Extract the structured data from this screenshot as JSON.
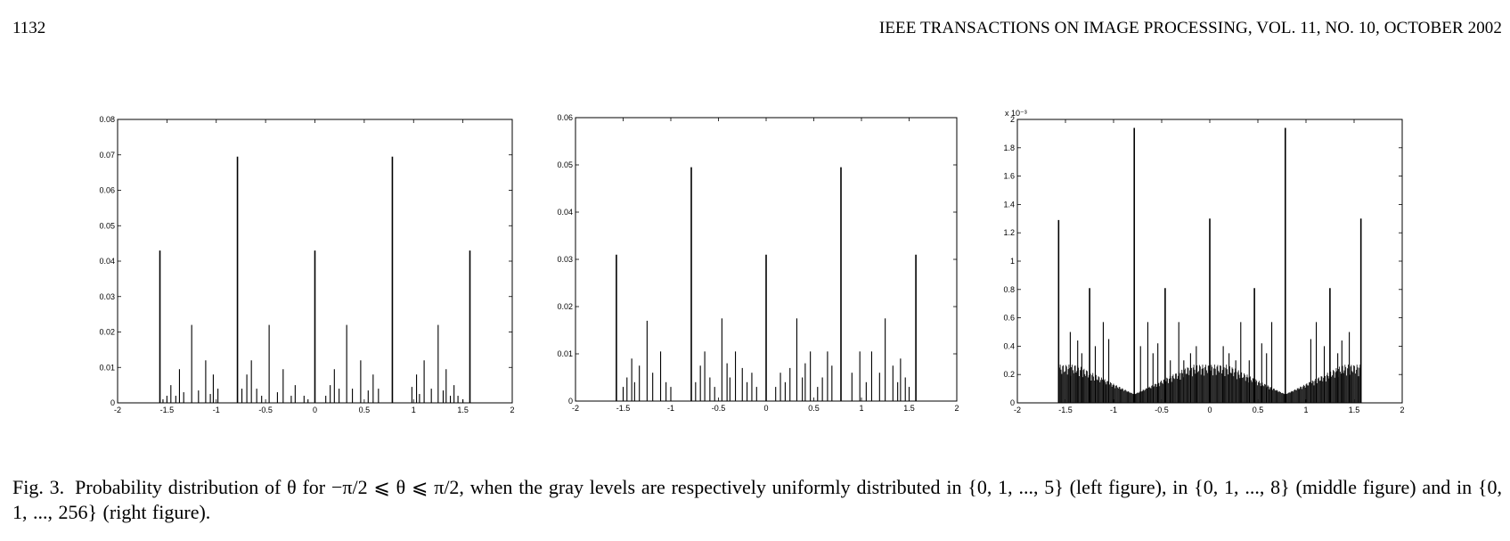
{
  "header": {
    "page_number": "1132",
    "journal": "IEEE TRANSACTIONS ON IMAGE PROCESSING, VOL. 11, NO. 10, OCTOBER 2002"
  },
  "caption": {
    "label": "Fig. 3.",
    "text": "Probability distribution of θ for −π/2 ⩽ θ ⩽ π/2, when the gray levels are respectively uniformly distributed in {0, 1, ..., 5} (left figure), in {0, 1, ..., 8} (middle figure) and in {0, 1, ..., 256} (right figure)."
  },
  "chart_data": [
    {
      "type": "bar",
      "title": "",
      "xlabel": "",
      "ylabel": "",
      "xlim": [
        -2,
        2
      ],
      "ylim": [
        0,
        0.08
      ],
      "x_ticks": [
        "-2",
        "-1.5",
        "-1",
        "-0.5",
        "0",
        "0.5",
        "1",
        "1.5",
        "2"
      ],
      "y_ticks": [
        "0",
        "0.01",
        "0.02",
        "0.03",
        "0.04",
        "0.05",
        "0.06",
        "0.07",
        "0.08"
      ],
      "x": [
        -1.571,
        -1.54,
        -1.5,
        -1.46,
        -1.41,
        -1.373,
        -1.33,
        -1.249,
        -1.18,
        -1.107,
        -1.06,
        -1.03,
        -0.983,
        -0.785,
        -0.74,
        -0.69,
        -0.644,
        -0.59,
        -0.54,
        -0.464,
        -0.38,
        -0.322,
        -0.24,
        -0.2,
        -0.11,
        -0.07,
        0,
        0.11,
        0.155,
        0.197,
        0.245,
        0.322,
        0.38,
        0.464,
        0.54,
        0.59,
        0.644,
        0.785,
        0.983,
        1.03,
        1.06,
        1.107,
        1.18,
        1.249,
        1.3,
        1.33,
        1.373,
        1.41,
        1.45,
        1.5,
        1.571
      ],
      "values": [
        0.043,
        0.001,
        0.002,
        0.005,
        0.002,
        0.0095,
        0.003,
        0.022,
        0.0035,
        0.012,
        0.0025,
        0.008,
        0.004,
        0.0695,
        0.004,
        0.008,
        0.012,
        0.004,
        0.002,
        0.022,
        0.003,
        0.0095,
        0.002,
        0.005,
        0.002,
        0.001,
        0.043,
        0.002,
        0.005,
        0.0095,
        0.004,
        0.022,
        0.004,
        0.012,
        0.0035,
        0.008,
        0.004,
        0.0695,
        0.0045,
        0.008,
        0.0025,
        0.012,
        0.004,
        0.022,
        0.0035,
        0.0095,
        0.002,
        0.005,
        0.002,
        0.001,
        0.043
      ]
    },
    {
      "type": "bar",
      "title": "",
      "xlabel": "",
      "ylabel": "",
      "xlim": [
        -2,
        2
      ],
      "ylim": [
        0,
        0.06
      ],
      "x_ticks": [
        "-2",
        "-1.5",
        "-1",
        "-0.5",
        "0",
        "0.5",
        "1",
        "1.5",
        "2"
      ],
      "y_ticks": [
        "0",
        "0.01",
        "0.02",
        "0.03",
        "0.04",
        "0.05",
        "0.06"
      ],
      "x": [
        -1.571,
        -1.5,
        -1.46,
        -1.41,
        -1.38,
        -1.33,
        -1.249,
        -1.19,
        -1.107,
        -1.05,
        -1.0,
        -0.785,
        -0.74,
        -0.69,
        -0.644,
        -0.59,
        -0.54,
        -0.464,
        -0.41,
        -0.38,
        -0.322,
        -0.25,
        -0.2,
        -0.15,
        -0.1,
        0,
        0.1,
        0.15,
        0.2,
        0.25,
        0.322,
        0.38,
        0.41,
        0.464,
        0.54,
        0.59,
        0.644,
        0.69,
        0.785,
        0.9,
        0.983,
        1.05,
        1.107,
        1.19,
        1.249,
        1.33,
        1.38,
        1.41,
        1.46,
        1.5,
        1.571
      ],
      "values": [
        0.031,
        0.003,
        0.005,
        0.009,
        0.004,
        0.0075,
        0.017,
        0.006,
        0.0105,
        0.004,
        0.003,
        0.0495,
        0.004,
        0.0075,
        0.0105,
        0.005,
        0.003,
        0.0175,
        0.008,
        0.005,
        0.0105,
        0.007,
        0.004,
        0.006,
        0.003,
        0.031,
        0.003,
        0.006,
        0.004,
        0.007,
        0.0175,
        0.005,
        0.008,
        0.0105,
        0.003,
        0.005,
        0.0105,
        0.0075,
        0.0495,
        0.006,
        0.0105,
        0.004,
        0.0105,
        0.006,
        0.0175,
        0.0075,
        0.004,
        0.009,
        0.005,
        0.003,
        0.031
      ]
    },
    {
      "type": "bar",
      "title": "",
      "xlabel": "",
      "ylabel": "",
      "y_scale_label": "x 10⁻³",
      "xlim": [
        -2,
        2
      ],
      "ylim": [
        0,
        2
      ],
      "x_ticks": [
        "-2",
        "-1.5",
        "-1",
        "-0.5",
        "0",
        "0.5",
        "1",
        "1.5",
        "2"
      ],
      "y_ticks": [
        "0",
        "0.2",
        "0.4",
        "0.6",
        "0.8",
        "1",
        "1.2",
        "1.4",
        "1.6",
        "1.8",
        "2"
      ],
      "x": [
        -1.571,
        -1.45,
        -1.373,
        -1.33,
        -1.249,
        -1.19,
        -1.107,
        -1.05,
        -0.785,
        -0.72,
        -0.644,
        -0.59,
        -0.54,
        -0.464,
        -0.41,
        -0.322,
        -0.27,
        -0.2,
        -0.14,
        0,
        0.14,
        0.2,
        0.27,
        0.322,
        0.41,
        0.464,
        0.54,
        0.59,
        0.644,
        0.785,
        1.05,
        1.107,
        1.19,
        1.249,
        1.33,
        1.373,
        1.45,
        1.571
      ],
      "values": [
        1.29,
        0.5,
        0.44,
        0.35,
        0.81,
        0.4,
        0.57,
        0.45,
        1.94,
        0.4,
        0.57,
        0.35,
        0.42,
        0.81,
        0.3,
        0.57,
        0.3,
        0.35,
        0.4,
        1.3,
        0.4,
        0.35,
        0.3,
        0.57,
        0.3,
        0.81,
        0.42,
        0.35,
        0.57,
        1.94,
        0.45,
        0.57,
        0.4,
        0.81,
        0.35,
        0.44,
        0.5,
        1.3
      ]
    }
  ]
}
